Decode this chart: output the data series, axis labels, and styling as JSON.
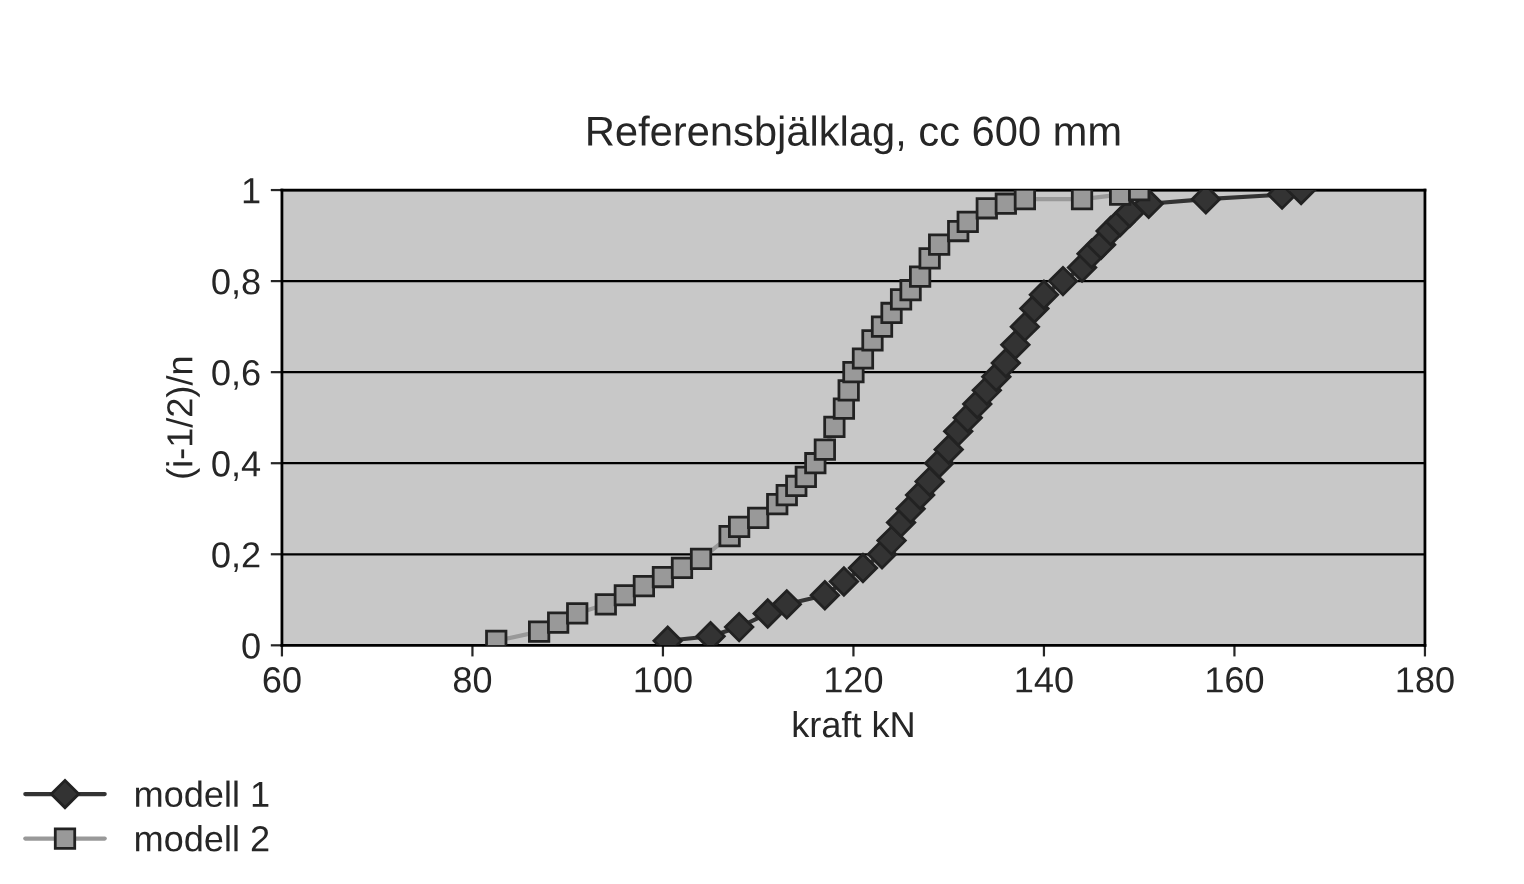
{
  "chart_data": {
    "type": "line",
    "title": "Referensbjälklag, cc 600 mm",
    "xlabel": "kraft kN",
    "ylabel": "(i-1/2)/n",
    "xlim": [
      60,
      180
    ],
    "xticks": [
      60,
      80,
      100,
      120,
      140,
      160,
      180
    ],
    "ylim": [
      0,
      1
    ],
    "yticks": [
      0,
      {
        "value": 0.2,
        "label": "0,2"
      },
      {
        "value": 0.4,
        "label": "0,4"
      },
      {
        "value": 0.6,
        "label": "0,6"
      },
      {
        "value": 0.8,
        "label": "0,8"
      },
      1
    ],
    "grid": "y",
    "legend": "bottom left",
    "line_style": "solid",
    "series": [
      {
        "name": "modell 1",
        "color": "#333333",
        "marker": "diamond",
        "x": [
          100.5,
          105,
          108,
          111,
          113,
          117,
          119,
          121,
          123,
          124,
          125,
          126,
          127,
          128,
          129,
          130,
          131,
          132,
          133,
          134,
          135,
          136,
          137,
          138,
          139,
          140,
          142,
          144,
          145,
          146,
          147,
          148,
          149,
          151,
          157,
          165,
          167
        ],
        "values": [
          0.01,
          0.02,
          0.04,
          0.07,
          0.09,
          0.11,
          0.14,
          0.17,
          0.2,
          0.23,
          0.27,
          0.3,
          0.33,
          0.36,
          0.4,
          0.43,
          0.47,
          0.5,
          0.53,
          0.56,
          0.59,
          0.62,
          0.66,
          0.7,
          0.74,
          0.77,
          0.8,
          0.83,
          0.86,
          0.88,
          0.91,
          0.93,
          0.95,
          0.97,
          0.98,
          0.99,
          1.0
        ]
      },
      {
        "name": "modell 2",
        "color": "#999999",
        "marker": "square",
        "x": [
          82.5,
          87,
          89,
          91,
          94,
          96,
          98,
          100,
          102,
          104,
          107,
          108,
          110,
          112,
          113,
          114,
          115,
          116,
          117,
          118,
          119,
          119.5,
          120,
          121,
          122,
          123,
          124,
          125,
          126,
          127,
          128,
          129,
          131,
          132,
          134,
          136,
          138,
          144,
          148,
          150
        ],
        "values": [
          0.01,
          0.03,
          0.05,
          0.07,
          0.09,
          0.11,
          0.13,
          0.15,
          0.17,
          0.19,
          0.24,
          0.26,
          0.28,
          0.31,
          0.33,
          0.35,
          0.37,
          0.4,
          0.43,
          0.48,
          0.52,
          0.56,
          0.6,
          0.63,
          0.67,
          0.7,
          0.73,
          0.76,
          0.78,
          0.81,
          0.85,
          0.88,
          0.91,
          0.93,
          0.96,
          0.97,
          0.98,
          0.98,
          0.99,
          1.0
        ]
      }
    ]
  }
}
